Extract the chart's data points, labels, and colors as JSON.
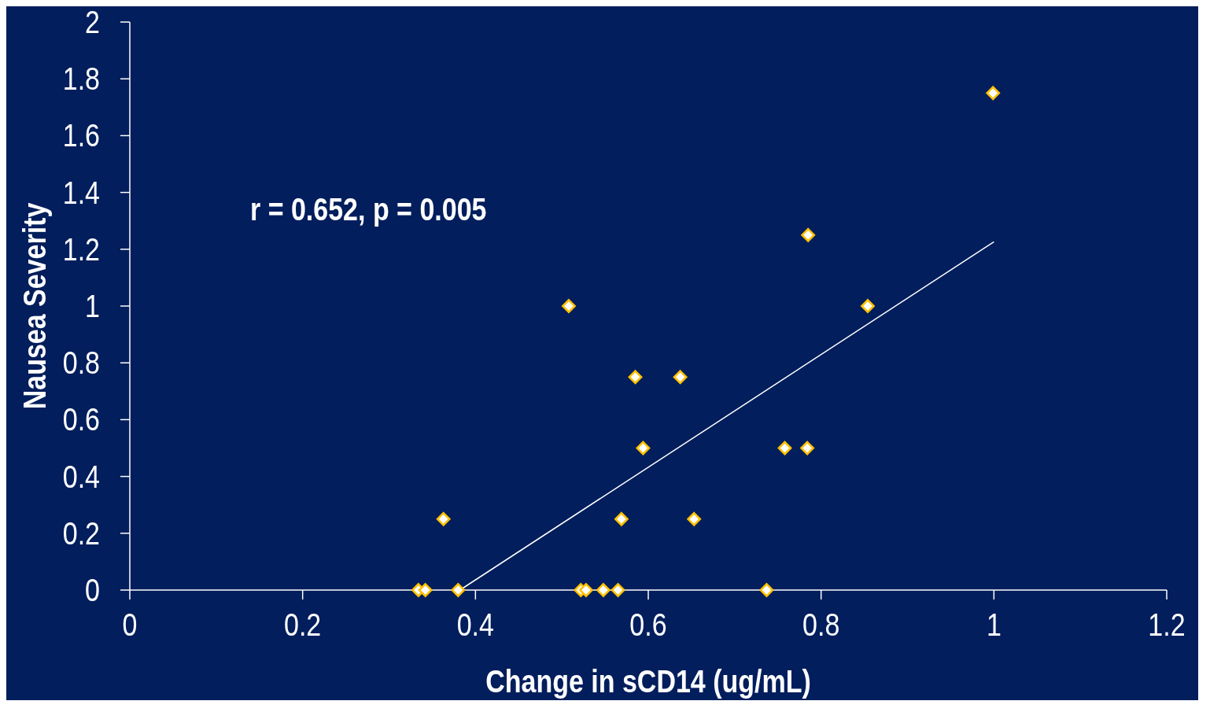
{
  "chart_data": {
    "type": "scatter",
    "xlabel": "Change in sCD14 (ug/mL)",
    "ylabel": "Nausea Severity",
    "xlim": [
      0,
      1.2
    ],
    "xticks": [
      0,
      0.2,
      0.4,
      0.6,
      0.8,
      1,
      1.2
    ],
    "ylim": [
      0,
      2
    ],
    "yticks": [
      0,
      0.2,
      0.4,
      0.6,
      0.8,
      1,
      1.2,
      1.4,
      1.6,
      1.8,
      2
    ],
    "annotations": [
      "r = 0.652, p = 0.005"
    ],
    "series": [
      {
        "marker": "diamond",
        "color": "#ffc000",
        "x": [
          0.334,
          0.342,
          0.38,
          0.363,
          0.508,
          0.522,
          0.528,
          0.548,
          0.565,
          0.569,
          0.585,
          0.594,
          0.637,
          0.653,
          0.737,
          0.758,
          0.784,
          0.785,
          0.854,
          0.999
        ],
        "values": [
          0,
          0,
          0,
          0.25,
          1,
          0,
          0,
          0,
          0,
          0.25,
          0.75,
          0.5,
          0.75,
          0.25,
          0,
          0.5,
          0.5,
          1.25,
          1,
          1.75
        ]
      },
      {
        "type": "line",
        "marker": "none",
        "color": "#ffffff",
        "x": [
          0.382,
          1
        ],
        "values": [
          0,
          1.226
        ]
      }
    ]
  }
}
